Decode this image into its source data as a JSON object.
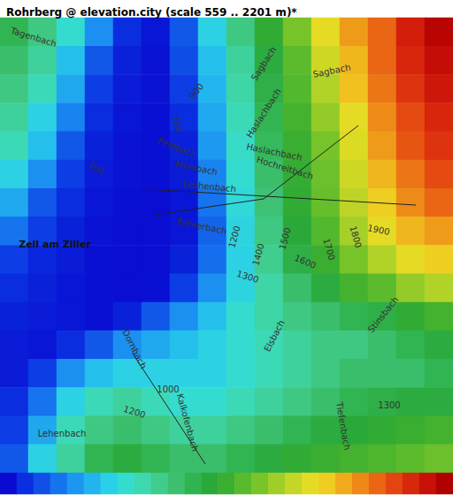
{
  "chart_data": {
    "type": "heatmap",
    "title": "Rohrberg @ elevation.city (scale 559 .. 2201 m)*",
    "tick_labels": false,
    "values": [
      [
        1250,
        1150,
        1000,
        800,
        620,
        580,
        700,
        950,
        1150,
        1350,
        1500,
        1700,
        1850,
        1950,
        2100,
        2180
      ],
      [
        1200,
        1100,
        900,
        700,
        600,
        575,
        680,
        900,
        1100,
        1300,
        1450,
        1650,
        1800,
        1950,
        2080,
        2150
      ],
      [
        1150,
        1050,
        850,
        650,
        590,
        575,
        650,
        880,
        1080,
        1280,
        1430,
        1600,
        1780,
        1920,
        2050,
        2120
      ],
      [
        1100,
        950,
        780,
        620,
        580,
        570,
        620,
        850,
        1050,
        1250,
        1400,
        1550,
        1700,
        1880,
        2000,
        2080
      ],
      [
        1050,
        900,
        700,
        600,
        575,
        570,
        600,
        820,
        1020,
        1230,
        1380,
        1500,
        1680,
        1850,
        1980,
        2050
      ],
      [
        950,
        800,
        650,
        590,
        575,
        570,
        590,
        780,
        1000,
        1200,
        1360,
        1480,
        1650,
        1800,
        1920,
        2000
      ],
      [
        850,
        700,
        620,
        580,
        570,
        565,
        580,
        750,
        980,
        1180,
        1350,
        1470,
        1620,
        1750,
        1880,
        1950
      ],
      [
        750,
        650,
        600,
        575,
        565,
        565,
        580,
        720,
        960,
        1150,
        1320,
        1430,
        1580,
        1700,
        1800,
        1850
      ],
      [
        650,
        610,
        590,
        570,
        565,
        565,
        600,
        740,
        950,
        1120,
        1280,
        1380,
        1500,
        1600,
        1700,
        1750
      ],
      [
        620,
        600,
        580,
        570,
        565,
        570,
        650,
        800,
        960,
        1080,
        1200,
        1300,
        1400,
        1450,
        1550,
        1600
      ],
      [
        600,
        590,
        580,
        570,
        600,
        700,
        800,
        900,
        1000,
        1080,
        1150,
        1200,
        1250,
        1280,
        1350,
        1400
      ],
      [
        590,
        580,
        620,
        700,
        800,
        850,
        900,
        950,
        1000,
        1050,
        1100,
        1150,
        1150,
        1200,
        1250,
        1300
      ],
      [
        590,
        650,
        800,
        900,
        950,
        950,
        950,
        950,
        1000,
        1050,
        1100,
        1150,
        1200,
        1200,
        1200,
        1250
      ],
      [
        620,
        750,
        950,
        1050,
        1100,
        1050,
        1000,
        1000,
        1050,
        1100,
        1150,
        1200,
        1250,
        1280,
        1300,
        1300
      ],
      [
        650,
        850,
        1050,
        1150,
        1200,
        1150,
        1100,
        1100,
        1150,
        1200,
        1250,
        1300,
        1320,
        1350,
        1380,
        1400
      ],
      [
        700,
        950,
        1100,
        1250,
        1300,
        1250,
        1200,
        1200,
        1250,
        1300,
        1350,
        1380,
        1400,
        1420,
        1450,
        1480
      ]
    ],
    "colorbar": {
      "range": [
        559,
        2201
      ],
      "ticks": [
        559,
        622,
        685,
        748,
        812,
        875,
        938,
        1001,
        1064,
        1127,
        1191,
        1254,
        1317,
        1380,
        1443,
        1506,
        1569,
        1633,
        1696,
        1759,
        1822,
        1885,
        1948,
        2012,
        2075,
        2138,
        2201
      ],
      "colors": [
        "#0a0ad0",
        "#0a2ee0",
        "#1050e8",
        "#1673ee",
        "#1c96f0",
        "#22b4ee",
        "#2ad0e8",
        "#34dcd0",
        "#3ed8b0",
        "#40cc8c",
        "#3cc070",
        "#30b450",
        "#2aa83a",
        "#3aae30",
        "#58ba2c",
        "#7ac42a",
        "#a0ce28",
        "#c4d626",
        "#e4dc24",
        "#f0cc20",
        "#f0aa1c",
        "#ee8818",
        "#ea6614",
        "#e44410",
        "#d8280c",
        "#c81008",
        "#b00000"
      ]
    },
    "annotations": [
      "Tagenbach",
      "Sagbach",
      "Sagbach",
      "Haslachbach",
      "Haslachbach",
      "Hochreitbach",
      "Feldbach",
      "Mühlbach",
      "Lechenbach",
      "Rohrerbach",
      "Zell am Ziller",
      "Elsbach",
      "Dornbach",
      "Kalkofenbach",
      "Lehenbach",
      "Stinsbach",
      "Tiefenbach",
      "900",
      "700",
      "700",
      "1200",
      "1400",
      "1500",
      "1600",
      "1700",
      "1800",
      "1900",
      "1300",
      "1000",
      "1200",
      "1300"
    ]
  }
}
